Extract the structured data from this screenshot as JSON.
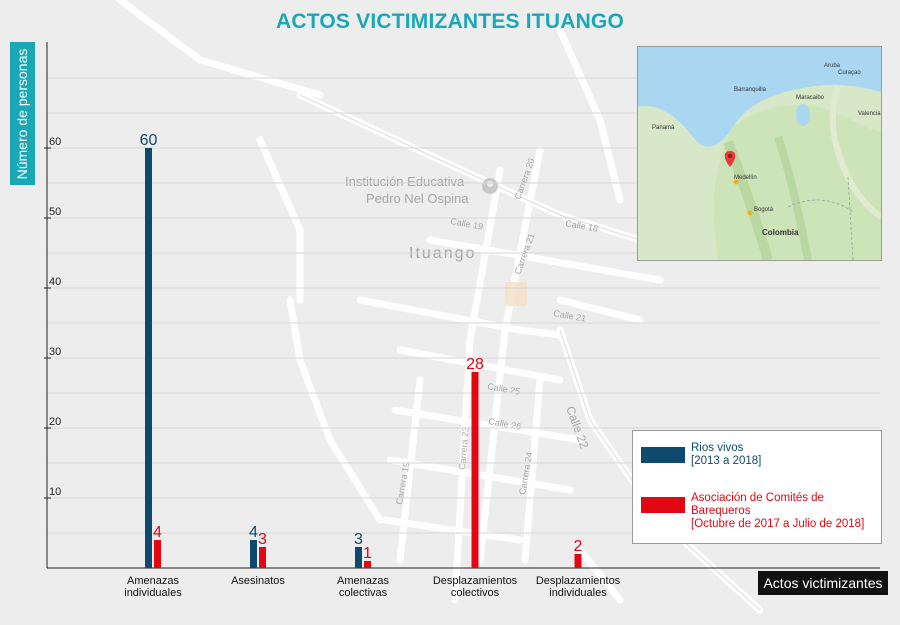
{
  "title": "ACTOS VICTIMIZANTES ITUANGO",
  "ylabel": "Número de personas",
  "xlabel": "Actos victimizantes",
  "colors": {
    "accent": "#19a8b6",
    "series1": "#0d4a6b",
    "series2": "#e30613"
  },
  "map_labels": {
    "school_line1": "Institución Educativa",
    "school_line2": "Pedro Nel Ospina",
    "town": "Ituango",
    "streets": [
      "Carrera 20",
      "Calle 19",
      "Calle 18",
      "Carrera 21",
      "Calle 21",
      "Calle 25",
      "Calle 26",
      "Calle 22",
      "Carrera 19",
      "Carrera 24",
      "Carrera 23"
    ]
  },
  "inset_map": {
    "country": "Colombia",
    "cities": [
      "Aruba",
      "Curaçao",
      "Barranquilla",
      "Maracaibo",
      "Valencia",
      "Panamá",
      "Medellín",
      "Bogotá"
    ]
  },
  "chart_data": {
    "type": "bar",
    "title": "ACTOS VICTIMIZANTES ITUANGO",
    "xlabel": "Actos victimizantes",
    "ylabel": "Número de personas",
    "ylim": [
      0,
      70
    ],
    "yticks": [
      10,
      20,
      30,
      40,
      50,
      60
    ],
    "grid": true,
    "legend_position": "right",
    "categories": [
      [
        "Amenazas",
        "individuales"
      ],
      [
        "Asesinatos"
      ],
      [
        "Amenazas",
        "colectivas"
      ],
      [
        "Desplazamientos",
        "colectivos"
      ],
      [
        "Desplazamientos",
        "individuales"
      ]
    ],
    "series": [
      {
        "name": "Rios vivos",
        "name_sub": "[2013 a 2018]",
        "color": "#0d4a6b",
        "values": [
          60,
          4,
          3,
          null,
          null
        ]
      },
      {
        "name": "Asociación de Comités de Barequeros",
        "name_sub": "[Octubre de 2017 a Julio de 2018]",
        "color": "#e30613",
        "values": [
          4,
          3,
          1,
          28,
          2
        ]
      }
    ]
  }
}
